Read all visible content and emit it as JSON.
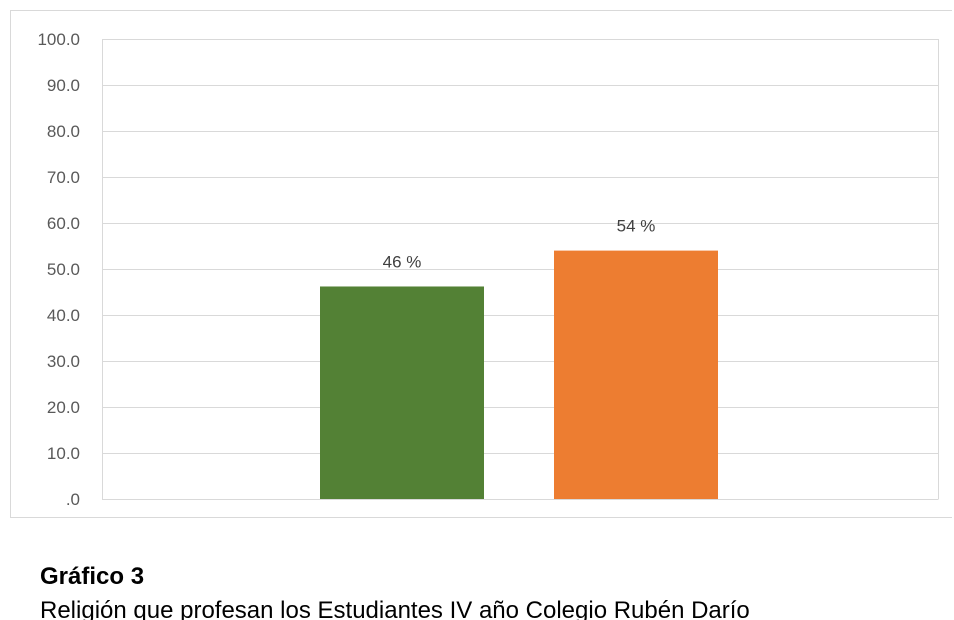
{
  "chart_data": {
    "type": "bar",
    "values": [
      46.2,
      54.0
    ],
    "data_labels": [
      "46 %",
      "54 %"
    ],
    "colors": [
      "#538135",
      "#ed7d31"
    ],
    "ylim": [
      0,
      100
    ],
    "y_ticks": [
      0,
      10,
      20,
      30,
      40,
      50,
      60,
      70,
      80,
      90,
      100
    ],
    "y_tick_labels": [
      ".0",
      "10.0",
      "20.0",
      "30.0",
      "40.0",
      "50.0",
      "60.0",
      "70.0",
      "80.0",
      "90.0",
      "100.0"
    ],
    "grid": true,
    "gridline_color": "#d9d9d9",
    "legend": "none"
  },
  "caption": {
    "title": "Gráfico 3",
    "subtitle": "Religión que profesan los Estudiantes IV año Colegio Rubén Darío"
  }
}
